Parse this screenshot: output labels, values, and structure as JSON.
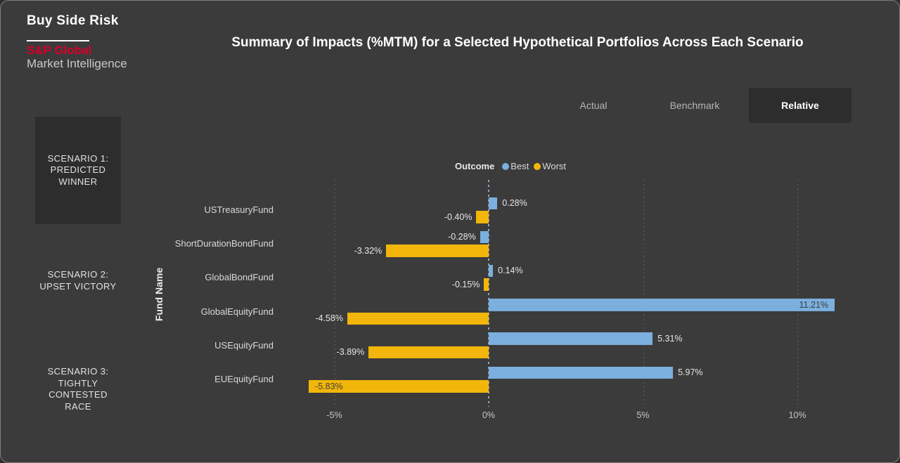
{
  "brand": {
    "app_title": "Buy Side Risk",
    "line1": "S&P Global",
    "line2": "Market Intelligence"
  },
  "header": {
    "title": "Summary of Impacts (%MTM) for a Selected Hypothetical Portfolios Across Each Scenario"
  },
  "tabs": [
    {
      "label": "Actual",
      "selected": false
    },
    {
      "label": "Benchmark",
      "selected": false
    },
    {
      "label": "Relative",
      "selected": true
    }
  ],
  "scenarios": [
    {
      "id": "scenario-1",
      "lines": [
        "SCENARIO 1:",
        "PREDICTED",
        "WINNER"
      ],
      "selected": true
    },
    {
      "id": "scenario-2",
      "lines": [
        "SCENARIO 2:",
        "UPSET VICTORY"
      ],
      "selected": false
    },
    {
      "id": "scenario-3",
      "lines": [
        "SCENARIO 3:",
        "TIGHTLY",
        "CONTESTED",
        "RACE"
      ],
      "selected": false
    }
  ],
  "colors": {
    "background": "#3b3b3b",
    "panel": "#2d2d2d",
    "best_blue": "#7bafde",
    "worst_yellow": "#f2b60a",
    "brand_red": "#d6002a",
    "zero_line": "#8ca7bf"
  },
  "chart_data": {
    "type": "bar",
    "orientation": "horizontal",
    "title": "Summary of Impacts (%MTM) for a Selected Hypothetical Portfolios Across Each Scenario",
    "ylabel": "Fund Name",
    "xlabel": "",
    "legend_title": "Outcome",
    "legend_position": "top-center",
    "grid": "dotted-vertical",
    "zero_line": true,
    "xlim": [
      -6.3,
      11.8
    ],
    "categories": [
      "USTreasuryFund",
      "ShortDurationBondFund",
      "GlobalBondFund",
      "GlobalEquityFund",
      "USEquityFund",
      "EUEquityFund"
    ],
    "series": [
      {
        "name": "Best",
        "color": "#7bafde",
        "values": [
          0.28,
          -0.28,
          0.14,
          11.21,
          5.31,
          5.97
        ],
        "labels": [
          "0.28%",
          "-0.28%",
          "0.14%",
          "11.21%",
          "5.31%",
          "5.97%"
        ],
        "label_inside": [
          false,
          false,
          false,
          true,
          false,
          false
        ]
      },
      {
        "name": "Worst",
        "color": "#f2b60a",
        "values": [
          -0.4,
          -3.32,
          -0.15,
          -4.58,
          -3.89,
          -5.83
        ],
        "labels": [
          "-0.40%",
          "-3.32%",
          "-0.15%",
          "-4.58%",
          "-3.89%",
          "-5.83%"
        ],
        "label_inside": [
          false,
          false,
          false,
          false,
          false,
          true
        ]
      }
    ],
    "x_ticks": [
      {
        "label": "-5%",
        "value": -5
      },
      {
        "label": "0%",
        "value": 0
      },
      {
        "label": "5%",
        "value": 5
      },
      {
        "label": "10%",
        "value": 10
      }
    ]
  }
}
